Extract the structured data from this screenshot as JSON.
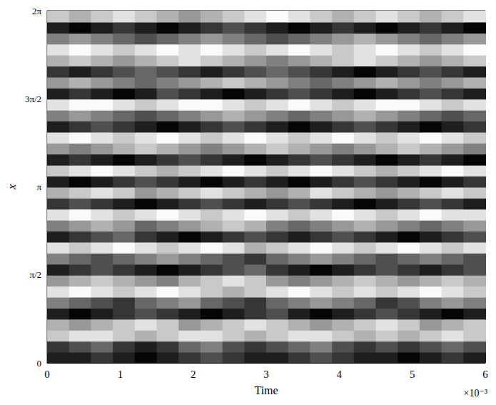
{
  "chart_data": {
    "type": "heatmap",
    "x_label": "Time",
    "y_label": "x",
    "annotation": "×10⁻³",
    "xlim": [
      0,
      6
    ],
    "xticks": [
      0,
      1,
      2,
      3,
      4,
      5,
      6
    ],
    "ylim": [
      0,
      6.2832
    ],
    "yticks": [
      0,
      {
        "value": 1.5708,
        "label": "π/2"
      },
      {
        "value": 3.1416,
        "label": "π"
      },
      {
        "value": 4.7124,
        "label": "3π/2"
      },
      {
        "value": 6.2832,
        "label": "2π"
      }
    ],
    "value_range": [
      -5,
      5
    ],
    "cells": {
      "t": [
        0.15,
        0.45,
        0.75,
        1.05,
        1.35,
        1.65,
        1.95,
        2.25,
        2.55,
        2.85,
        3.15,
        3.45,
        3.75,
        4.05,
        4.35,
        4.65,
        4.95,
        5.25,
        5.55,
        5.85
      ],
      "x": [
        0.098,
        0.295,
        0.491,
        0.687,
        0.884,
        1.08,
        1.276,
        1.473,
        1.669,
        1.865,
        2.062,
        2.258,
        2.454,
        2.651,
        2.847,
        3.043,
        3.24,
        3.436,
        3.632,
        3.829,
        4.025,
        4.221,
        4.418,
        4.614,
        4.81,
        5.007,
        5.203,
        5.399,
        5.596,
        5.792,
        5.988,
        6.185
      ],
      "values": [
        [
          -4,
          -4,
          -3,
          -4,
          -5,
          -4,
          -3,
          -2,
          -3,
          -4,
          -4,
          -3,
          -2,
          -3,
          -4,
          -4,
          -5,
          -4,
          -3,
          -4
        ],
        [
          -3,
          -2,
          -1,
          -3,
          -4,
          -3,
          -1,
          0,
          -2,
          -3,
          -2,
          -1,
          0,
          -2,
          -3,
          -2,
          -3,
          -2,
          -1,
          -2
        ],
        [
          3,
          4,
          4,
          3,
          2,
          3,
          4,
          4,
          3,
          2,
          3,
          4,
          4,
          3,
          2,
          3,
          2,
          3,
          4,
          3
        ],
        [
          2,
          1,
          2,
          3,
          4,
          3,
          1,
          2,
          3,
          4,
          3,
          2,
          1,
          2,
          3,
          4,
          3,
          1,
          2,
          3
        ],
        [
          -4,
          -5,
          -4,
          -3,
          -2,
          -3,
          -4,
          -5,
          -4,
          -3,
          -2,
          -4,
          -5,
          -4,
          -3,
          -2,
          -3,
          -4,
          -5,
          -4
        ],
        [
          0,
          -1,
          -2,
          -3,
          -1,
          0,
          1,
          -1,
          -2,
          -3,
          -1,
          0,
          1,
          0,
          -1,
          -3,
          -2,
          0,
          1,
          0
        ],
        [
          4,
          5,
          4,
          3,
          4,
          5,
          4,
          3,
          2,
          3,
          4,
          5,
          4,
          3,
          4,
          3,
          4,
          5,
          4,
          3
        ],
        [
          1,
          2,
          3,
          2,
          1,
          0,
          2,
          3,
          4,
          3,
          1,
          0,
          1,
          2,
          3,
          2,
          1,
          2,
          3,
          2
        ],
        [
          -4,
          -3,
          -2,
          -3,
          -4,
          -5,
          -4,
          -3,
          -2,
          -1,
          -3,
          -4,
          -5,
          -4,
          -3,
          -2,
          -3,
          -4,
          -3,
          -2
        ],
        [
          0,
          -1,
          -2,
          -1,
          0,
          1,
          0,
          -1,
          -2,
          -3,
          -1,
          0,
          1,
          0,
          -1,
          -2,
          -1,
          0,
          -1,
          -2
        ],
        [
          4,
          3,
          4,
          5,
          4,
          3,
          4,
          5,
          4,
          2,
          3,
          4,
          5,
          4,
          3,
          4,
          5,
          4,
          3,
          4
        ],
        [
          -4,
          -3,
          -2,
          -1,
          -3,
          -4,
          -5,
          -4,
          -3,
          -2,
          -3,
          -4,
          -3,
          -2,
          -3,
          -4,
          -5,
          -4,
          -3,
          -2
        ],
        [
          0,
          1,
          2,
          1,
          -1,
          0,
          1,
          2,
          3,
          2,
          0,
          -1,
          0,
          1,
          2,
          1,
          0,
          -1,
          0,
          1
        ],
        [
          4,
          5,
          4,
          3,
          4,
          5,
          4,
          3,
          4,
          5,
          4,
          3,
          4,
          5,
          4,
          3,
          4,
          5,
          4,
          4
        ],
        [
          -3,
          -2,
          -3,
          -4,
          -5,
          -4,
          -3,
          -2,
          -3,
          -4,
          -3,
          -2,
          -3,
          -4,
          -5,
          -4,
          -3,
          -2,
          -3,
          -4
        ],
        [
          2,
          3,
          4,
          3,
          1,
          2,
          3,
          4,
          3,
          2,
          1,
          2,
          4,
          3,
          2,
          1,
          2,
          3,
          4,
          3
        ],
        [
          -4,
          -5,
          -4,
          -3,
          -2,
          -3,
          -4,
          -5,
          -4,
          -3,
          -4,
          -5,
          -4,
          -3,
          -2,
          -3,
          -4,
          -5,
          -4,
          -3
        ],
        [
          3,
          4,
          5,
          4,
          3,
          2,
          3,
          4,
          5,
          4,
          3,
          4,
          5,
          4,
          3,
          2,
          3,
          4,
          5,
          4
        ],
        [
          -4,
          -3,
          -4,
          -5,
          -4,
          -3,
          -2,
          -3,
          -4,
          -5,
          -4,
          -3,
          -2,
          -3,
          -4,
          -5,
          -4,
          -3,
          -4,
          -5
        ],
        [
          1,
          0,
          1,
          2,
          3,
          2,
          1,
          0,
          1,
          2,
          3,
          2,
          1,
          0,
          1,
          2,
          3,
          2,
          1,
          0
        ],
        [
          4,
          5,
          4,
          3,
          4,
          5,
          4,
          3,
          4,
          5,
          4,
          3,
          4,
          5,
          4,
          3,
          4,
          5,
          4,
          3
        ],
        [
          -4,
          -3,
          -2,
          -3,
          -4,
          -5,
          -4,
          -3,
          -2,
          -3,
          -4,
          -5,
          -4,
          -3,
          -2,
          -3,
          -4,
          -5,
          -4,
          -3
        ],
        [
          0,
          1,
          0,
          -1,
          -2,
          -1,
          0,
          1,
          2,
          1,
          0,
          -1,
          0,
          1,
          2,
          1,
          0,
          -1,
          -2,
          -1
        ],
        [
          4,
          5,
          5,
          4,
          3,
          4,
          5,
          5,
          4,
          3,
          4,
          5,
          4,
          3,
          4,
          5,
          5,
          4,
          3,
          4
        ],
        [
          -4,
          -3,
          -4,
          -5,
          -4,
          -2,
          -3,
          -4,
          -5,
          -4,
          -3,
          -2,
          -3,
          -4,
          -5,
          -4,
          -3,
          -2,
          -3,
          -4
        ],
        [
          1,
          2,
          1,
          0,
          -1,
          0,
          1,
          2,
          3,
          2,
          1,
          0,
          -1,
          0,
          1,
          2,
          1,
          0,
          1,
          2
        ],
        [
          -3,
          -4,
          -3,
          -2,
          -1,
          -2,
          -3,
          -4,
          -3,
          -2,
          -1,
          -2,
          -3,
          -4,
          -5,
          -4,
          -3,
          -2,
          -3,
          -4
        ],
        [
          2,
          3,
          2,
          1,
          2,
          3,
          4,
          3,
          2,
          1,
          0,
          1,
          2,
          3,
          4,
          3,
          2,
          1,
          2,
          3
        ],
        [
          4,
          5,
          4,
          3,
          4,
          5,
          4,
          5,
          4,
          3,
          4,
          5,
          4,
          3,
          4,
          5,
          4,
          3,
          4,
          5
        ],
        [
          0,
          1,
          0,
          -1,
          -2,
          -1,
          0,
          1,
          0,
          -1,
          -2,
          -1,
          0,
          1,
          2,
          1,
          0,
          -1,
          0,
          1
        ],
        [
          -4,
          -5,
          -4,
          -3,
          -4,
          -5,
          -4,
          -3,
          -2,
          -3,
          -4,
          -5,
          -4,
          -3,
          -4,
          -5,
          -4,
          -3,
          -4,
          -5
        ],
        [
          3,
          2,
          3,
          4,
          3,
          2,
          1,
          2,
          3,
          4,
          5,
          4,
          3,
          2,
          3,
          4,
          3,
          2,
          3,
          4
        ]
      ]
    }
  }
}
